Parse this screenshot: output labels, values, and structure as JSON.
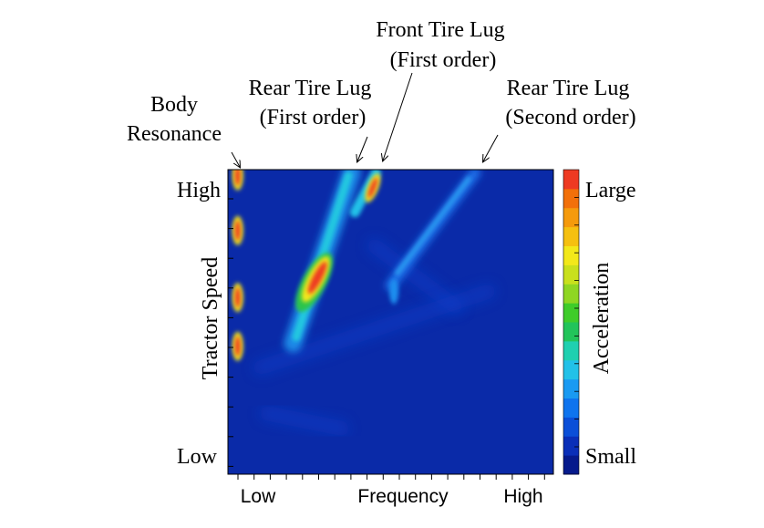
{
  "chart_data": {
    "type": "heatmap",
    "title": "",
    "xlabel": "Frequency",
    "ylabel": "Tractor Speed",
    "x_ticklabels": {
      "low": "Low",
      "high": "High"
    },
    "y_ticklabels": {
      "low": "Low",
      "high": "High"
    },
    "colorbar": {
      "label": "Acceleration",
      "high_label": "Large",
      "low_label": "Small",
      "colors": [
        "#061a8c",
        "#0a2fb8",
        "#0b4fd8",
        "#0f74ee",
        "#1a9af2",
        "#22c1e8",
        "#1fd0b0",
        "#22c45a",
        "#3fcc2a",
        "#8fd622",
        "#c9e01c",
        "#f2e81a",
        "#f5c010",
        "#f59a0c",
        "#f2700a",
        "#ee3a22"
      ]
    },
    "annotations": [
      {
        "id": "body",
        "lines": [
          "Body",
          "Resonance"
        ]
      },
      {
        "id": "rear1",
        "lines": [
          "Rear Tire Lug",
          "(First order)"
        ]
      },
      {
        "id": "front1",
        "lines": [
          "Front Tire Lug",
          "(First order)"
        ]
      },
      {
        "id": "rear2",
        "lines": [
          "Rear Tire Lug",
          "(Second order)"
        ]
      }
    ],
    "features": [
      {
        "name": "Body Resonance",
        "frequency": 0.03,
        "speed_range": [
          0.0,
          1.0
        ],
        "peaks": [
          0.98,
          0.8,
          0.58,
          0.42
        ]
      },
      {
        "name": "Rear Tire Lug (First order)",
        "frequency_at_low_speed": 0.2,
        "frequency_at_high_speed": 0.38,
        "peak_speed_range": [
          0.55,
          0.72
        ]
      },
      {
        "name": "Front Tire Lug (First order)",
        "frequency_at_high_speed": 0.445,
        "peak_speed_range": [
          0.9,
          0.97
        ]
      },
      {
        "name": "Rear Tire Lug (Second order)",
        "frequency_at_low_speed": 0.5,
        "frequency_at_high_speed": 0.76
      }
    ]
  }
}
